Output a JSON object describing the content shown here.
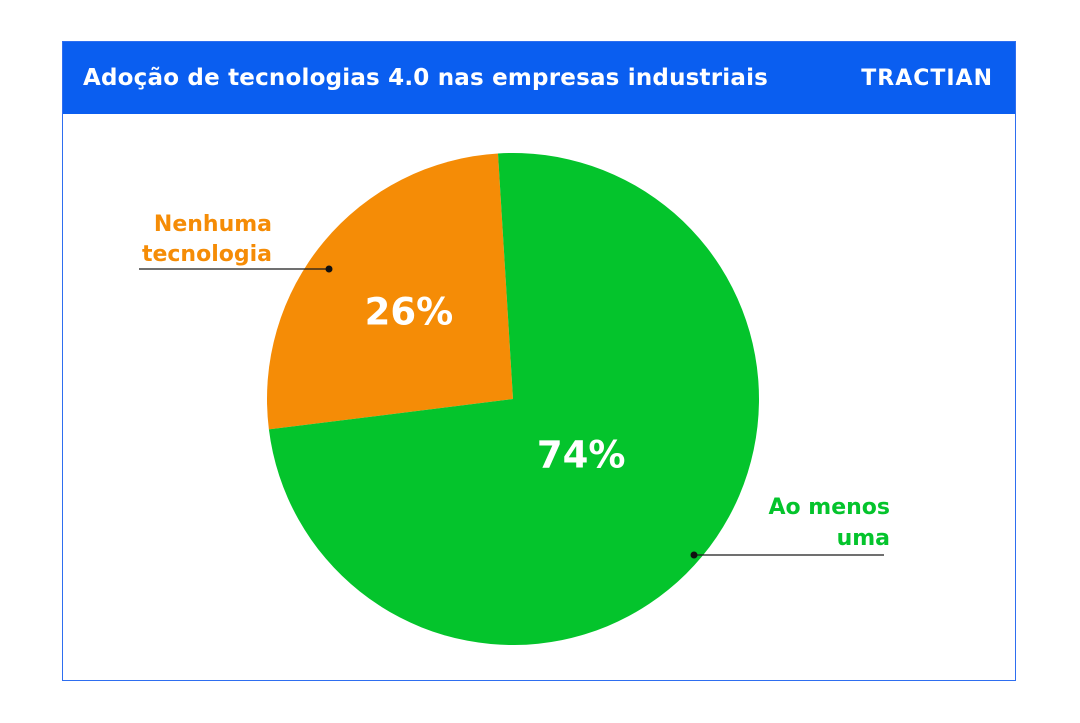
{
  "header": {
    "title": "Adoção de tecnologias 4.0 nas empresas industriais",
    "logo_text": "TRACTIAN",
    "background_color": "#0a5ef0"
  },
  "chart_data": {
    "type": "pie",
    "title": "Adoção de tecnologias 4.0 nas empresas industriais",
    "slices": [
      {
        "label": [
          "Nenhuma",
          "tecnologia"
        ],
        "value": 26,
        "display": "26%",
        "color": "#f58c06"
      },
      {
        "label": [
          "Ao menos",
          "uma"
        ],
        "value": 74,
        "display": "74%",
        "color": "#04c42c"
      }
    ],
    "label_colors": [
      "#f58c06",
      "#04c42c"
    ],
    "value_label_color": "#ffffff",
    "legend": "callout labels"
  }
}
